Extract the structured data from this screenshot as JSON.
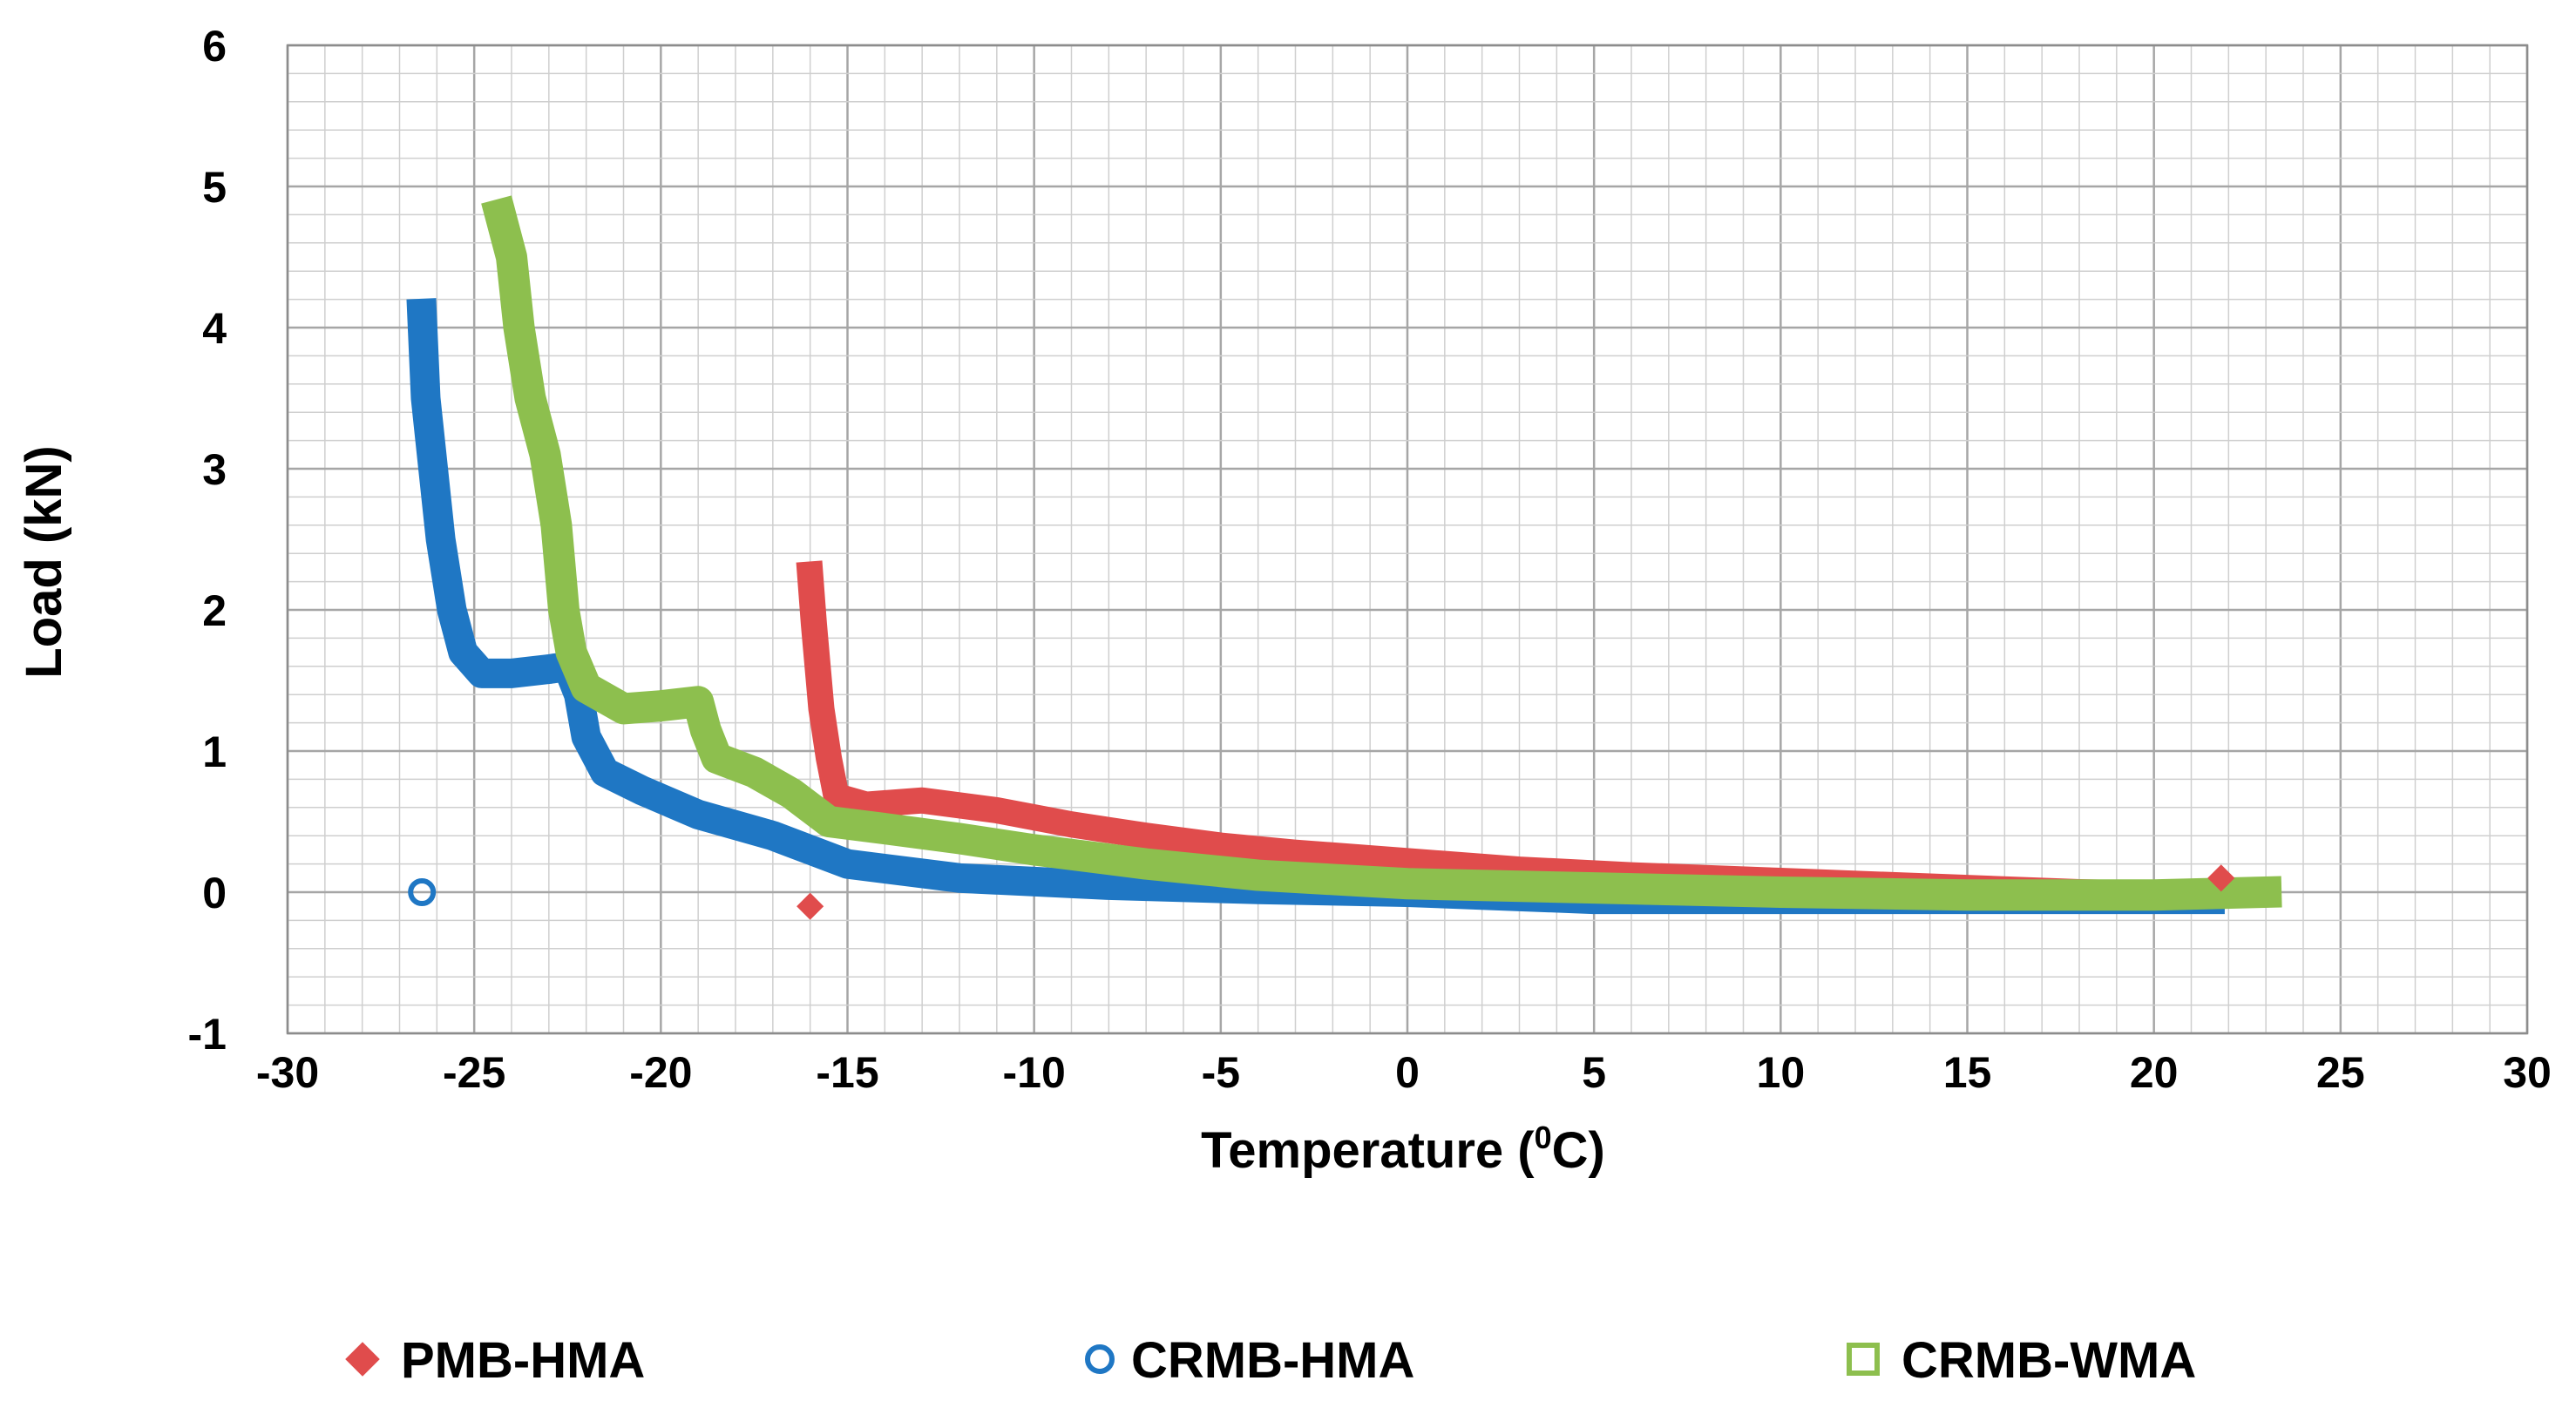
{
  "chart_data": {
    "type": "scatter",
    "title": "",
    "xlabel": "Temperature (°C)",
    "xlabel_main": "Temperature (",
    "xlabel_sup": "0",
    "xlabel_end": "C)",
    "ylabel": "Load (kN)",
    "xlim": [
      -30,
      30
    ],
    "ylim": [
      -1,
      6
    ],
    "xticks": [
      -30,
      -25,
      -20,
      -15,
      -10,
      -5,
      0,
      5,
      10,
      15,
      20,
      25,
      30
    ],
    "yticks": [
      -1,
      0,
      1,
      2,
      3,
      4,
      5,
      6
    ],
    "grid": true,
    "legend_position": "bottom",
    "series": [
      {
        "name": "PMB-HMA",
        "color": "#e04c4c",
        "marker": "diamond",
        "points": [
          [
            -16.0,
            -0.1
          ],
          [
            21.8,
            0.1
          ]
        ],
        "curve": [
          [
            -16.0,
            2.25
          ],
          [
            -15.9,
            1.9
          ],
          [
            -15.7,
            1.3
          ],
          [
            -15.5,
            0.95
          ],
          [
            -15.3,
            0.68
          ],
          [
            -14.5,
            0.62
          ],
          [
            -13.0,
            0.65
          ],
          [
            -11.0,
            0.58
          ],
          [
            -9.0,
            0.48
          ],
          [
            -7.0,
            0.4
          ],
          [
            -5.0,
            0.33
          ],
          [
            -3.0,
            0.28
          ],
          [
            0.0,
            0.22
          ],
          [
            3.0,
            0.16
          ],
          [
            6.0,
            0.12
          ],
          [
            10.0,
            0.08
          ],
          [
            14.0,
            0.04
          ],
          [
            18.0,
            0.0
          ],
          [
            21.5,
            -0.02
          ]
        ]
      },
      {
        "name": "CRMB-HMA",
        "color": "#1f77c4",
        "marker": "circle",
        "points": [
          [
            -26.4,
            0.0
          ]
        ],
        "curve": [
          [
            -26.4,
            4.1
          ],
          [
            -26.3,
            3.5
          ],
          [
            -26.1,
            3.0
          ],
          [
            -25.9,
            2.5
          ],
          [
            -25.6,
            2.0
          ],
          [
            -25.3,
            1.7
          ],
          [
            -24.8,
            1.55
          ],
          [
            -24.0,
            1.55
          ],
          [
            -23.0,
            1.58
          ],
          [
            -22.5,
            1.6
          ],
          [
            -22.2,
            1.4
          ],
          [
            -22.0,
            1.1
          ],
          [
            -21.5,
            0.85
          ],
          [
            -20.5,
            0.72
          ],
          [
            -19.0,
            0.55
          ],
          [
            -17.0,
            0.4
          ],
          [
            -15.0,
            0.2
          ],
          [
            -12.0,
            0.1
          ],
          [
            -8.0,
            0.05
          ],
          [
            -4.0,
            0.02
          ],
          [
            0.0,
            0.0
          ],
          [
            5.0,
            -0.05
          ],
          [
            10.0,
            -0.05
          ],
          [
            15.0,
            -0.05
          ],
          [
            21.5,
            -0.05
          ]
        ]
      },
      {
        "name": "CRMB-WMA",
        "color": "#8dbf4e",
        "marker": "square",
        "points": [],
        "curve": [
          [
            -24.3,
            4.8
          ],
          [
            -24.0,
            4.5
          ],
          [
            -23.8,
            4.0
          ],
          [
            -23.5,
            3.5
          ],
          [
            -23.1,
            3.1
          ],
          [
            -22.8,
            2.6
          ],
          [
            -22.6,
            2.0
          ],
          [
            -22.4,
            1.7
          ],
          [
            -22.0,
            1.45
          ],
          [
            -21.0,
            1.3
          ],
          [
            -20.0,
            1.32
          ],
          [
            -19.0,
            1.35
          ],
          [
            -18.8,
            1.15
          ],
          [
            -18.5,
            0.95
          ],
          [
            -17.5,
            0.85
          ],
          [
            -16.5,
            0.7
          ],
          [
            -15.5,
            0.5
          ],
          [
            -14.0,
            0.45
          ],
          [
            -12.0,
            0.38
          ],
          [
            -10.0,
            0.3
          ],
          [
            -7.0,
            0.2
          ],
          [
            -4.0,
            0.12
          ],
          [
            0.0,
            0.06
          ],
          [
            5.0,
            0.03
          ],
          [
            10.0,
            0.0
          ],
          [
            15.0,
            -0.02
          ],
          [
            20.0,
            -0.02
          ],
          [
            23.0,
            0.0
          ]
        ]
      }
    ]
  }
}
